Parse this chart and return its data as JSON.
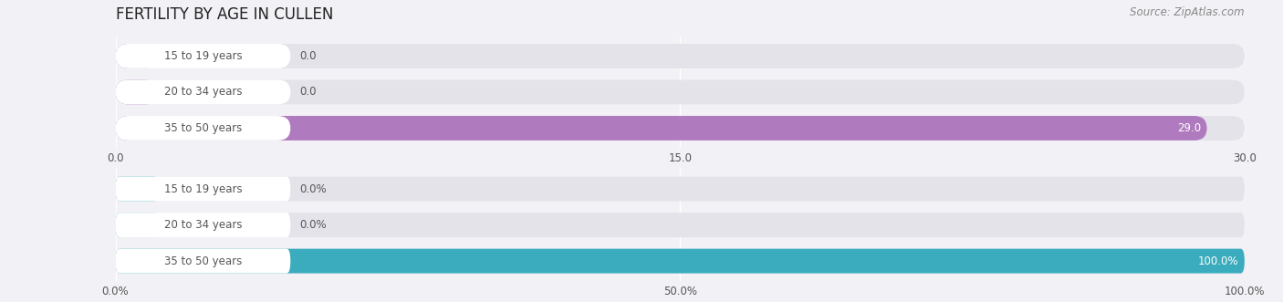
{
  "title": "FERTILITY BY AGE IN CULLEN",
  "source": "Source: ZipAtlas.com",
  "top_chart": {
    "categories": [
      "15 to 19 years",
      "20 to 34 years",
      "35 to 50 years"
    ],
    "values": [
      0.0,
      0.0,
      29.0
    ],
    "bar_color": "#b07abf",
    "xlim": [
      0,
      30
    ],
    "xticks": [
      0.0,
      15.0,
      30.0
    ],
    "xtick_labels": [
      "0.0",
      "15.0",
      "30.0"
    ],
    "value_labels": [
      "0.0",
      "0.0",
      "29.0"
    ]
  },
  "bottom_chart": {
    "categories": [
      "15 to 19 years",
      "20 to 34 years",
      "35 to 50 years"
    ],
    "values": [
      0.0,
      0.0,
      100.0
    ],
    "bar_color": "#3aacbe",
    "xlim": [
      0,
      100
    ],
    "xticks": [
      0.0,
      50.0,
      100.0
    ],
    "xtick_labels": [
      "0.0%",
      "50.0%",
      "100.0%"
    ],
    "value_labels": [
      "0.0%",
      "0.0%",
      "100.0%"
    ]
  },
  "background_color": "#f2f1f6",
  "bar_bg_color": "#e4e3ea",
  "bar_white_label_color": "#ffffff",
  "label_color": "#555555",
  "title_color": "#222222",
  "source_color": "#888888",
  "fig_width": 14.06,
  "fig_height": 3.31,
  "dpi": 100
}
